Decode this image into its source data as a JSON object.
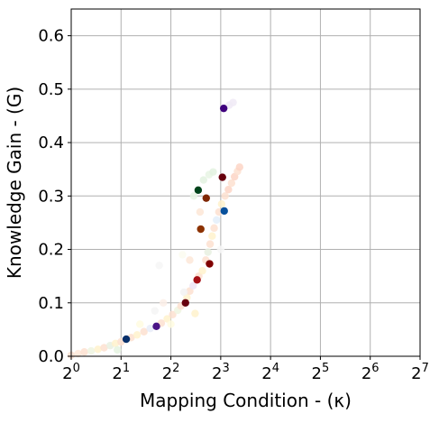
{
  "chart_data": {
    "type": "scatter",
    "xlabel": "Mapping Condition - (κ)",
    "ylabel": "Knowledge Gain - (G)",
    "x_scale": "log2",
    "xlim": [
      1,
      128
    ],
    "ylim": [
      0,
      0.65
    ],
    "x_ticks": [
      {
        "value": 1,
        "base": "2",
        "exp": "0"
      },
      {
        "value": 2,
        "base": "2",
        "exp": "1"
      },
      {
        "value": 4,
        "base": "2",
        "exp": "2"
      },
      {
        "value": 8,
        "base": "2",
        "exp": "3"
      },
      {
        "value": 16,
        "base": "2",
        "exp": "4"
      },
      {
        "value": 32,
        "base": "2",
        "exp": "5"
      },
      {
        "value": 64,
        "base": "2",
        "exp": "6"
      },
      {
        "value": 128,
        "base": "2",
        "exp": "7"
      }
    ],
    "y_ticks": [
      "0.0",
      "0.1",
      "0.2",
      "0.3",
      "0.4",
      "0.5",
      "0.6"
    ],
    "grid": true,
    "highlighted_points": [
      {
        "x": 2.15,
        "y": 0.032,
        "color": "#08306b"
      },
      {
        "x": 3.27,
        "y": 0.056,
        "color": "#4a1486"
      },
      {
        "x": 4.9,
        "y": 0.1,
        "color": "#67000d"
      },
      {
        "x": 5.76,
        "y": 0.143,
        "color": "#a50f15"
      },
      {
        "x": 6.85,
        "y": 0.173,
        "color": "#800000"
      },
      {
        "x": 6.06,
        "y": 0.238,
        "color": "#8c3200"
      },
      {
        "x": 8.4,
        "y": 0.272,
        "color": "#08519c"
      },
      {
        "x": 6.54,
        "y": 0.296,
        "color": "#7f2704"
      },
      {
        "x": 5.85,
        "y": 0.311,
        "color": "#00441b"
      },
      {
        "x": 8.19,
        "y": 0.335,
        "color": "#67000d"
      },
      {
        "x": 8.34,
        "y": 0.464,
        "color": "#3f007d"
      }
    ],
    "background_points": [
      {
        "x": 1.0,
        "y": 0.002,
        "color": "#fde0d0"
      },
      {
        "x": 1.1,
        "y": 0.005,
        "color": "#ffe8d8"
      },
      {
        "x": 1.2,
        "y": 0.008,
        "color": "#fde0d0"
      },
      {
        "x": 1.32,
        "y": 0.01,
        "color": "#eef4e0"
      },
      {
        "x": 1.45,
        "y": 0.013,
        "color": "#fff2cc"
      },
      {
        "x": 1.58,
        "y": 0.016,
        "color": "#fde0d0"
      },
      {
        "x": 1.72,
        "y": 0.02,
        "color": "#e8f0e0"
      },
      {
        "x": 1.85,
        "y": 0.024,
        "color": "#fff2cc"
      },
      {
        "x": 2.0,
        "y": 0.027,
        "color": "#fde0d0"
      },
      {
        "x": 1.9,
        "y": 0.012,
        "color": "#e5f3e0"
      },
      {
        "x": 2.3,
        "y": 0.035,
        "color": "#fde0d0"
      },
      {
        "x": 2.5,
        "y": 0.04,
        "color": "#fff2cc"
      },
      {
        "x": 2.75,
        "y": 0.046,
        "color": "#fde0d0"
      },
      {
        "x": 3.0,
        "y": 0.052,
        "color": "#e8ecf8"
      },
      {
        "x": 3.5,
        "y": 0.062,
        "color": "#fde0d0"
      },
      {
        "x": 3.8,
        "y": 0.07,
        "color": "#fff2cc"
      },
      {
        "x": 4.1,
        "y": 0.078,
        "color": "#fde0d0"
      },
      {
        "x": 4.4,
        "y": 0.086,
        "color": "#eef4e0"
      },
      {
        "x": 4.6,
        "y": 0.094,
        "color": "#fde0d0"
      },
      {
        "x": 5.0,
        "y": 0.11,
        "color": "#fff2cc"
      },
      {
        "x": 5.2,
        "y": 0.122,
        "color": "#fde0d0"
      },
      {
        "x": 5.45,
        "y": 0.132,
        "color": "#ede4f4"
      },
      {
        "x": 5.9,
        "y": 0.15,
        "color": "#fde0d0"
      },
      {
        "x": 6.2,
        "y": 0.16,
        "color": "#fff2cc"
      },
      {
        "x": 6.5,
        "y": 0.18,
        "color": "#fde0d0"
      },
      {
        "x": 6.7,
        "y": 0.195,
        "color": "#e8f0e0"
      },
      {
        "x": 6.9,
        "y": 0.21,
        "color": "#fde0d0"
      },
      {
        "x": 7.1,
        "y": 0.225,
        "color": "#fff2cc"
      },
      {
        "x": 7.3,
        "y": 0.24,
        "color": "#fde0d0"
      },
      {
        "x": 7.55,
        "y": 0.255,
        "color": "#e3eefa"
      },
      {
        "x": 7.8,
        "y": 0.27,
        "color": "#fde0d0"
      },
      {
        "x": 8.1,
        "y": 0.285,
        "color": "#fff2cc"
      },
      {
        "x": 8.5,
        "y": 0.3,
        "color": "#fde0d0"
      },
      {
        "x": 8.9,
        "y": 0.312,
        "color": "#fdd5c5"
      },
      {
        "x": 9.3,
        "y": 0.324,
        "color": "#fde0d0"
      },
      {
        "x": 9.7,
        "y": 0.336,
        "color": "#fdd5c5"
      },
      {
        "x": 10.1,
        "y": 0.346,
        "color": "#fde0d0"
      },
      {
        "x": 10.4,
        "y": 0.354,
        "color": "#fdd5c5"
      },
      {
        "x": 6.3,
        "y": 0.33,
        "color": "#e3f2e0"
      },
      {
        "x": 6.8,
        "y": 0.34,
        "color": "#e8f4e4"
      },
      {
        "x": 7.2,
        "y": 0.345,
        "color": "#e3f2e0"
      },
      {
        "x": 5.5,
        "y": 0.3,
        "color": "#e8f4e4"
      },
      {
        "x": 9.0,
        "y": 0.47,
        "color": "#f0eaf6"
      },
      {
        "x": 9.5,
        "y": 0.475,
        "color": "#f0eaf6"
      },
      {
        "x": 5.6,
        "y": 0.08,
        "color": "#fff2cc"
      },
      {
        "x": 3.2,
        "y": 0.085,
        "color": "#f5f5f5"
      },
      {
        "x": 4.0,
        "y": 0.06,
        "color": "#fffbe0"
      },
      {
        "x": 2.6,
        "y": 0.06,
        "color": "#fffbe0"
      },
      {
        "x": 6.0,
        "y": 0.27,
        "color": "#fde6d6"
      },
      {
        "x": 3.6,
        "y": 0.1,
        "color": "#fbeee8"
      },
      {
        "x": 4.8,
        "y": 0.12,
        "color": "#f2f2f2"
      },
      {
        "x": 3.4,
        "y": 0.17,
        "color": "#f6f6f6"
      },
      {
        "x": 4.7,
        "y": 0.19,
        "color": "#fbfbf0"
      },
      {
        "x": 5.2,
        "y": 0.18,
        "color": "#fde8d8"
      },
      {
        "x": 8.0,
        "y": 0.2,
        "color": "#f8f8f8"
      }
    ]
  }
}
